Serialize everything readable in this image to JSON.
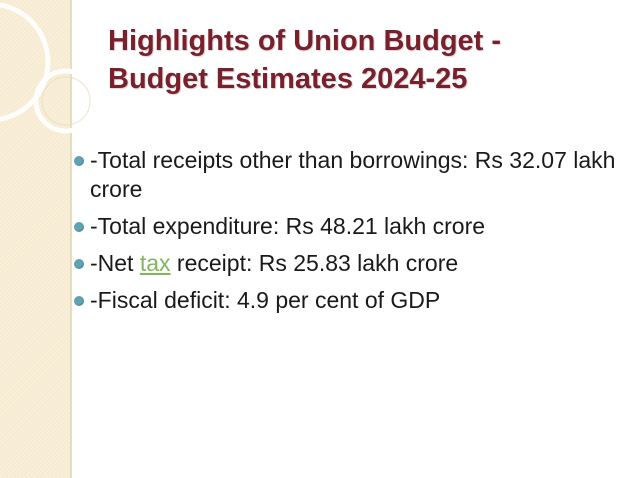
{
  "slide": {
    "title_line1": "Highlights of Union Budget -",
    "title_line2": "Budget Estimates 2024-25",
    "bullets": [
      {
        "text": "-Total receipts other than borrowings: Rs 32.07 lakh crore"
      },
      {
        "text": "-Total expenditure: Rs 48.21 lakh crore"
      },
      {
        "prefix": "-Net ",
        "link": "tax",
        "suffix": " receipt: Rs 25.83 lakh crore"
      },
      {
        "text": "-Fiscal deficit: 4.9 per cent of GDP"
      }
    ]
  },
  "colors": {
    "title": "#7a1f2c",
    "bullet_marker": "#5fa3b3",
    "link": "#7fb65c",
    "left_band": "#f6ead0"
  }
}
